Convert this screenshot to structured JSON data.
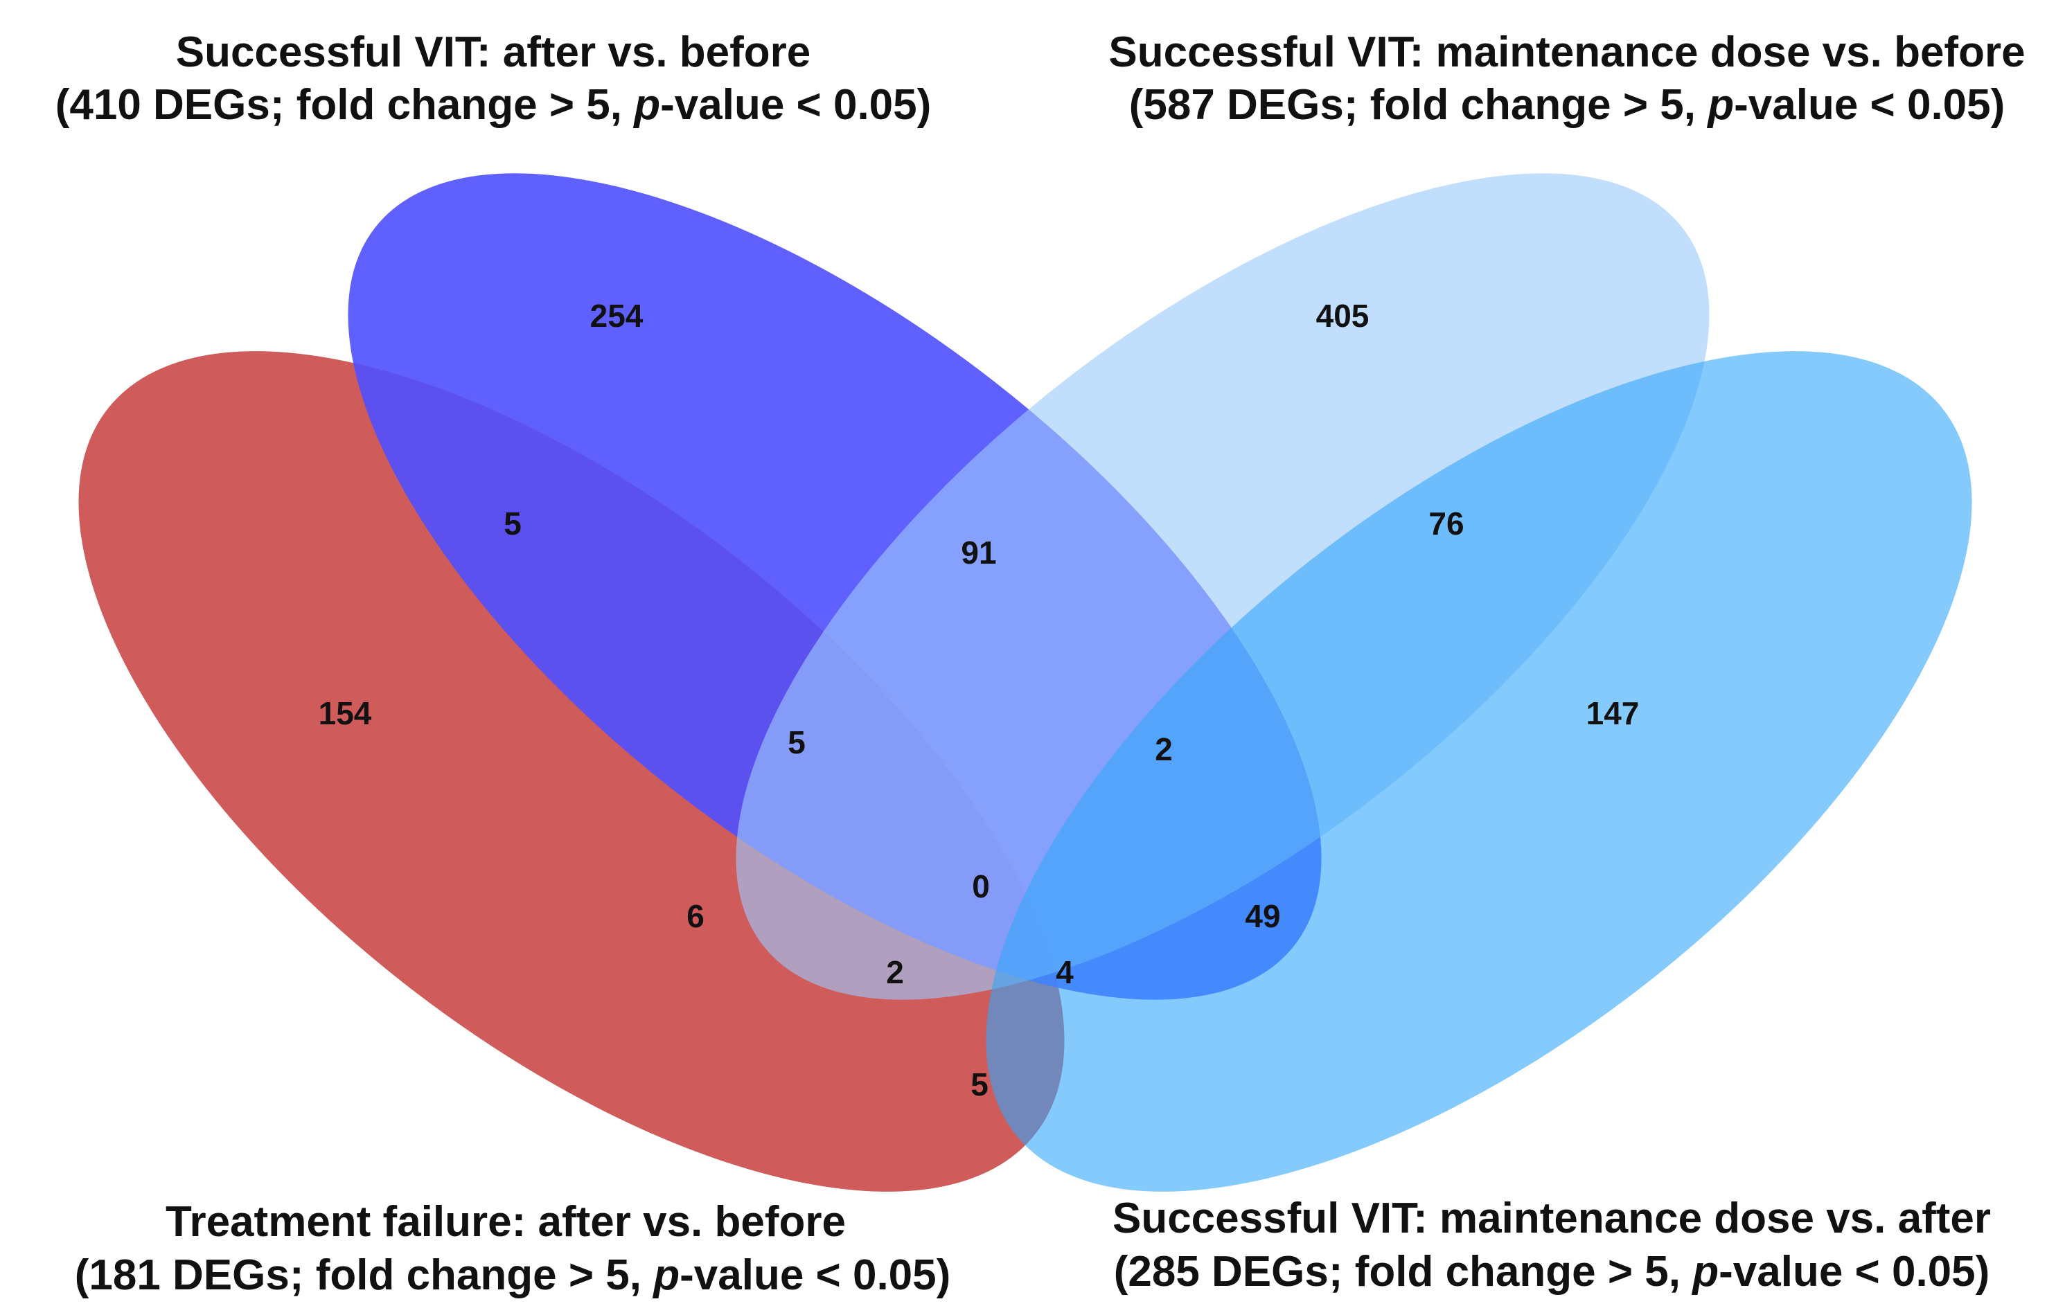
{
  "sets": [
    {
      "id": "treatment_failure",
      "color": "#c84444",
      "title": "Treatment failure: after vs. before",
      "caption": {
        "open": "(181 DEGs; fold change > 5, ",
        "p": "p",
        "close": "-value < 0.05)"
      }
    },
    {
      "id": "successful_after_before",
      "color": "#4f4ffe",
      "title": "Successful VIT: after vs. before",
      "caption": {
        "open": "(410 DEGs; fold change > 5, ",
        "p": "p",
        "close": "-value < 0.05)"
      }
    },
    {
      "id": "successful_maint_before",
      "color": "#9ccafc",
      "title": "Successful VIT: maintenance dose vs. before",
      "caption": {
        "open": "(587 DEGs; fold change > 5, ",
        "p": "p",
        "close": "-value < 0.05)"
      }
    },
    {
      "id": "successful_maint_after",
      "color": "#33a6fc",
      "title": "Successful VIT: maintenance dose vs. after",
      "caption": {
        "open": "(285 DEGs; fold change > 5, ",
        "p": "p",
        "close": "-value < 0.05)"
      }
    }
  ],
  "regions": {
    "tf_only": "154",
    "sab_only": "254",
    "smb_only": "405",
    "sma_only": "147",
    "tf_sab": "5",
    "sab_smb": "91",
    "smb_sma": "76",
    "tf_sab_smb": "5",
    "sab_smb_sma": "2",
    "tf_smb": "6",
    "all_four": "0",
    "sab_sma": "49",
    "tf_smb_sma": "2",
    "tf_sab_sma": "4",
    "tf_sma": "5"
  }
}
